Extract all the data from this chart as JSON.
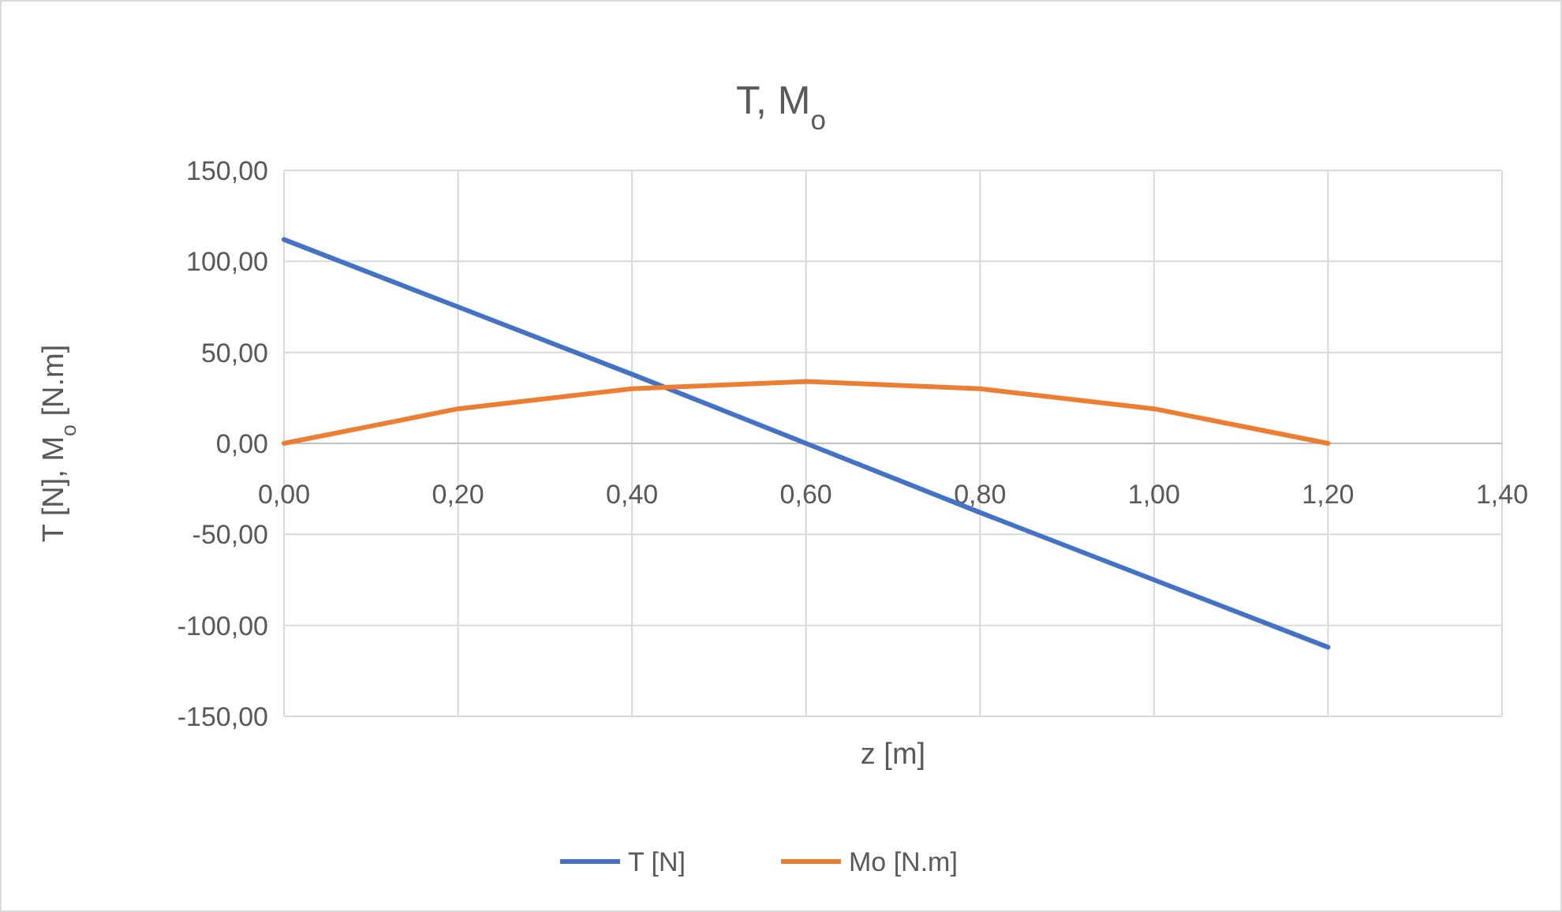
{
  "chart_data": {
    "type": "line",
    "title": "T, M$_{o}$",
    "xlabel": "z [m]",
    "ylabel": "T [N], M$_{o}$ [N.m]",
    "x": [
      0,
      0.2,
      0.4,
      0.6,
      0.8,
      1.0,
      1.2
    ],
    "series": [
      {
        "name": "T [N]",
        "color": "#4472c4",
        "values": [
          112,
          75,
          38,
          0,
          -38,
          -75,
          -112
        ]
      },
      {
        "name": "Mo [N.m]",
        "color": "#ed7d31",
        "values": [
          0,
          19,
          30,
          34,
          30,
          19,
          0
        ]
      }
    ],
    "xlim": [
      0,
      1.4
    ],
    "xticks": [
      {
        "value": 0,
        "label": "0,00"
      },
      {
        "value": 0.2,
        "label": "0,20"
      },
      {
        "value": 0.4,
        "label": "0,40"
      },
      {
        "value": 0.6,
        "label": "0,60"
      },
      {
        "value": 0.8,
        "label": "0,80"
      },
      {
        "value": 1.0,
        "label": "1,00"
      },
      {
        "value": 1.2,
        "label": "1,20"
      },
      {
        "value": 1.4,
        "label": "1,40"
      }
    ],
    "ylim": [
      -150,
      150
    ],
    "yticks": [
      {
        "value": -150,
        "label": "-150,00"
      },
      {
        "value": -100,
        "label": "-100,00"
      },
      {
        "value": -50,
        "label": "-50,00"
      },
      {
        "value": 0,
        "label": "0,00"
      },
      {
        "value": 50,
        "label": "50,00"
      },
      {
        "value": 100,
        "label": "100,00"
      },
      {
        "value": 150,
        "label": "150,00"
      }
    ],
    "grid": true,
    "legend": "bottom",
    "marker": "none",
    "line_style": "solid"
  }
}
